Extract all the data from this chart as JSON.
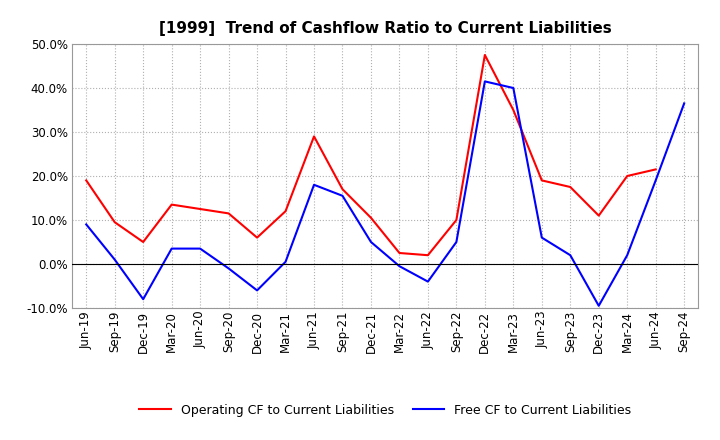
{
  "title": "[1999]  Trend of Cashflow Ratio to Current Liabilities",
  "x_labels": [
    "Jun-19",
    "Sep-19",
    "Dec-19",
    "Mar-20",
    "Jun-20",
    "Sep-20",
    "Dec-20",
    "Mar-21",
    "Jun-21",
    "Sep-21",
    "Dec-21",
    "Mar-22",
    "Jun-22",
    "Sep-22",
    "Dec-22",
    "Mar-23",
    "Jun-23",
    "Sep-23",
    "Dec-23",
    "Mar-24",
    "Jun-24",
    "Sep-24"
  ],
  "operating_cf": [
    19.0,
    9.5,
    5.0,
    13.5,
    12.5,
    11.5,
    6.0,
    12.0,
    29.0,
    17.0,
    10.5,
    2.5,
    2.0,
    10.0,
    47.5,
    35.0,
    19.0,
    17.5,
    11.0,
    20.0,
    21.5,
    null
  ],
  "free_cf": [
    9.0,
    1.0,
    -8.0,
    3.5,
    3.5,
    -1.0,
    -6.0,
    0.5,
    18.0,
    15.5,
    5.0,
    -0.5,
    -4.0,
    5.0,
    41.5,
    40.0,
    6.0,
    2.0,
    -9.5,
    2.0,
    19.0,
    36.5
  ],
  "ylim": [
    -10.0,
    50.0
  ],
  "yticks": [
    -10.0,
    0.0,
    10.0,
    20.0,
    30.0,
    40.0,
    50.0
  ],
  "operating_color": "#ff0000",
  "free_color": "#0000ff",
  "background_color": "#ffffff",
  "plot_bg_color": "#ffffff",
  "grid_color": "#b0b0b0",
  "linewidth": 1.5,
  "title_fontsize": 11,
  "tick_fontsize": 8.5,
  "legend_fontsize": 9
}
